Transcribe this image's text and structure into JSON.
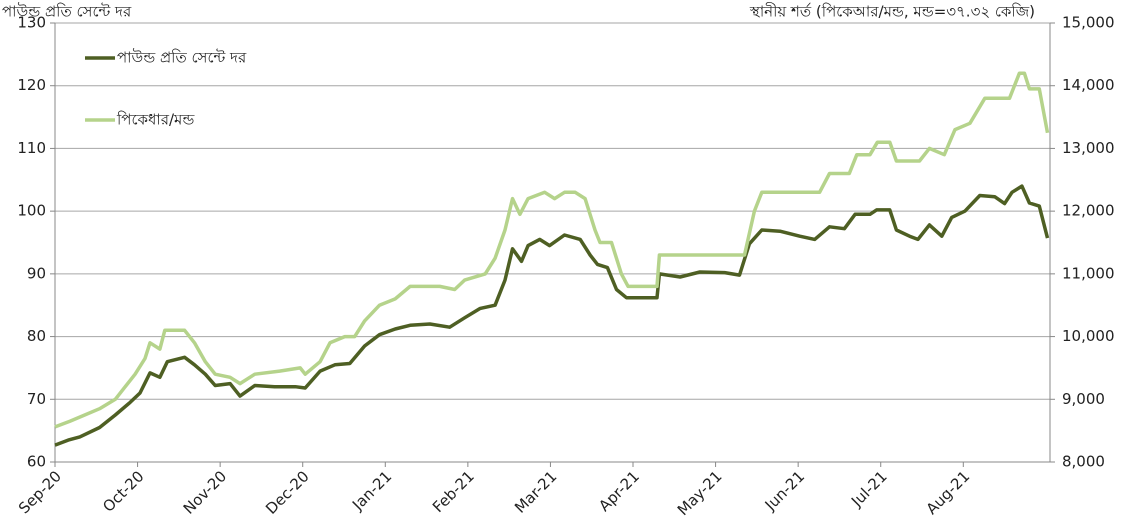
{
  "chart_data": {
    "type": "line",
    "title": "পাউন্ড প্রতি সেন্টে দর",
    "y2_title": "স্থানীয় শর্ত (পিকেআর/মন্ড, মন্ড=৩৭.৩২ কেজি)",
    "xlim": [
      0,
      12.05
    ],
    "xticks": [
      {
        "value": 0,
        "label": "Sep-20"
      },
      {
        "value": 1,
        "label": "Oct-20"
      },
      {
        "value": 2,
        "label": "Nov-20"
      },
      {
        "value": 3,
        "label": "Dec-20"
      },
      {
        "value": 4,
        "label": "Jan-21"
      },
      {
        "value": 5,
        "label": "Feb-21"
      },
      {
        "value": 6,
        "label": "Mar-21"
      },
      {
        "value": 7,
        "label": "Apr-21"
      },
      {
        "value": 8,
        "label": "May-21"
      },
      {
        "value": 9,
        "label": "Jun-21"
      },
      {
        "value": 10,
        "label": "Jul-21"
      },
      {
        "value": 11,
        "label": "Aug-21"
      }
    ],
    "ylim": [
      60,
      130
    ],
    "yticks": [
      60,
      70,
      80,
      90,
      100,
      110,
      120,
      130
    ],
    "y2lim": [
      8000,
      15000
    ],
    "y2ticks": [
      {
        "value": 8000,
        "label": "8,000"
      },
      {
        "value": 9000,
        "label": "9,000"
      },
      {
        "value": 10000,
        "label": "10,000"
      },
      {
        "value": 11000,
        "label": "11,000"
      },
      {
        "value": 12000,
        "label": "12,000"
      },
      {
        "value": 13000,
        "label": "13,000"
      },
      {
        "value": 14000,
        "label": "14,000"
      },
      {
        "value": 15000,
        "label": "15,000"
      }
    ],
    "grid": true,
    "legend": "top-left",
    "series": [
      {
        "name": "পাউন্ড প্রতি সেন্টে দর",
        "color": "#4e5f23",
        "axis": "y",
        "x": [
          0,
          0.16,
          0.3,
          0.54,
          0.73,
          0.91,
          1.03,
          1.15,
          1.27,
          1.36,
          1.57,
          1.69,
          1.82,
          1.94,
          2.12,
          2.24,
          2.42,
          2.66,
          2.91,
          3.03,
          3.21,
          3.39,
          3.57,
          3.75,
          3.93,
          4.12,
          4.3,
          4.54,
          4.78,
          4.96,
          5.15,
          5.33,
          5.45,
          5.54,
          5.65,
          5.73,
          5.87,
          5.99,
          6.17,
          6.36,
          6.48,
          6.57,
          6.69,
          6.8,
          6.92,
          7.14,
          7.29,
          7.32,
          7.57,
          7.81,
          8.11,
          8.29,
          8.41,
          8.56,
          8.78,
          9.02,
          9.2,
          9.38,
          9.56,
          9.69,
          9.87,
          9.95,
          10.11,
          10.19,
          10.35,
          10.45,
          10.59,
          10.74,
          10.86,
          11.02,
          11.2,
          11.38,
          11.5,
          11.59,
          11.71,
          11.8,
          11.92,
          12.02
        ],
        "values": [
          62.7,
          63.5,
          64,
          65.5,
          67.5,
          69.5,
          71,
          74.2,
          73.5,
          76,
          76.7,
          75.5,
          74,
          72.2,
          72.5,
          70.5,
          72.2,
          72,
          72,
          71.8,
          74.5,
          75.5,
          75.7,
          78.5,
          80.3,
          81.2,
          81.8,
          82,
          81.5,
          83,
          84.5,
          85,
          89,
          94,
          92,
          94.5,
          95.5,
          94.5,
          96.2,
          95.5,
          93,
          91.5,
          91,
          87.5,
          86.2,
          86.2,
          86.2,
          90,
          89.5,
          90.3,
          90.2,
          89.8,
          94.8,
          97,
          96.8,
          96,
          95.5,
          97.5,
          97.2,
          99.5,
          99.5,
          100.2,
          100.2,
          97,
          96,
          95.5,
          97.8,
          96,
          99,
          100,
          102.5,
          102.3,
          101.2,
          103,
          104,
          101.3,
          100.8,
          95.7
        ]
      },
      {
        "name": "পিকেধার/মন্ড",
        "color": "#b5d38b",
        "axis": "y2",
        "x": [
          0,
          0.18,
          0.36,
          0.54,
          0.73,
          0.85,
          0.97,
          1.09,
          1.15,
          1.27,
          1.33,
          1.57,
          1.69,
          1.82,
          1.94,
          2.12,
          2.24,
          2.42,
          2.72,
          2.97,
          3.03,
          3.21,
          3.33,
          3.51,
          3.63,
          3.75,
          3.93,
          4.12,
          4.3,
          4.66,
          4.84,
          4.96,
          5.21,
          5.33,
          5.45,
          5.54,
          5.63,
          5.73,
          5.93,
          6.05,
          6.17,
          6.3,
          6.42,
          6.54,
          6.6,
          6.74,
          6.86,
          6.94,
          7.29,
          7.32,
          8.35,
          8.47,
          8.56,
          9.26,
          9.38,
          9.62,
          9.71,
          9.87,
          9.96,
          10.11,
          10.19,
          10.47,
          10.59,
          10.77,
          10.9,
          11.08,
          11.26,
          11.56,
          11.68,
          11.74,
          11.8,
          11.92,
          12.02
        ],
        "values": [
          8560,
          8650,
          8750,
          8850,
          9000,
          9200,
          9400,
          9650,
          9900,
          9800,
          10100,
          10100,
          9900,
          9600,
          9400,
          9350,
          9250,
          9400,
          9450,
          9500,
          9400,
          9600,
          9900,
          10000,
          10000,
          10250,
          10500,
          10600,
          10800,
          10800,
          10750,
          10900,
          11000,
          11250,
          11700,
          12200,
          11950,
          12200,
          12300,
          12200,
          12300,
          12300,
          12200,
          11700,
          11500,
          11500,
          11000,
          10800,
          10800,
          11300,
          11300,
          12000,
          12300,
          12300,
          12600,
          12600,
          12900,
          12900,
          13100,
          13100,
          12800,
          12800,
          13000,
          12900,
          13300,
          13400,
          13800,
          13800,
          14200,
          14200,
          13950,
          13950,
          13250
        ]
      }
    ]
  }
}
